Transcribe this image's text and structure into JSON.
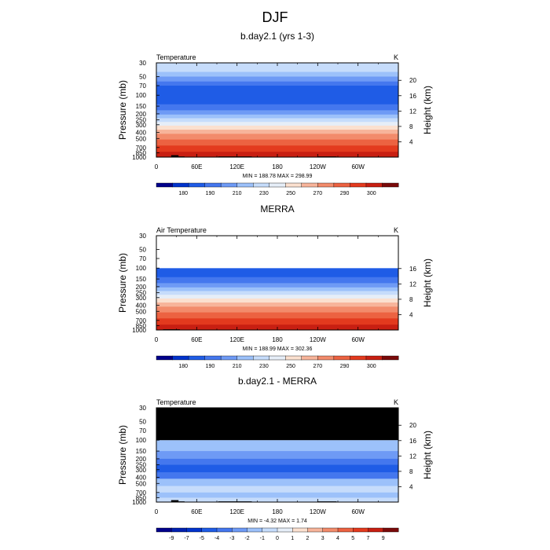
{
  "figure": {
    "title": "DJF",
    "axis_labels": {
      "pressure": "Pressure (mb)",
      "height": "Height (km)"
    }
  },
  "chart_data": [
    {
      "type": "heatmap",
      "title": "b.day2.1 (yrs 1-3)",
      "left_label": "Temperature",
      "unit": "K",
      "xlabel": "",
      "ylabel": "Pressure (mb)",
      "y2label": "Height (km)",
      "x_ticks": [
        "0",
        "60E",
        "120E",
        "180",
        "120W",
        "60W"
      ],
      "y_ticks": [
        "30",
        "50",
        "70",
        "100",
        "150",
        "200",
        "250",
        "300",
        "400",
        "500",
        "700",
        "850",
        "1000"
      ],
      "y2_ticks": [
        "4",
        "8",
        "12",
        "16",
        "20"
      ],
      "stats": "MIN = 188.78  MAX = 298.99",
      "min": 188.78,
      "max": 298.99,
      "colorbar_ticks": [
        "180",
        "190",
        "210",
        "230",
        "250",
        "270",
        "290",
        "300"
      ],
      "colorbar_colors": [
        "#00008b",
        "#0033cc",
        "#1f5ce6",
        "#4477ee",
        "#6e9af5",
        "#9cc1fa",
        "#c6dcfb",
        "#e6eef8",
        "#fbe0cf",
        "#f7b49a",
        "#f28b6b",
        "#ec6241",
        "#e33a1e",
        "#c81f12",
        "#7a0a0a"
      ],
      "bands": [
        {
          "p_top": 30,
          "p_bottom": 42,
          "color": "#c6dcfb"
        },
        {
          "p_top": 42,
          "p_bottom": 50,
          "color": "#9cc1fa"
        },
        {
          "p_top": 50,
          "p_bottom": 60,
          "color": "#6e9af5"
        },
        {
          "p_top": 60,
          "p_bottom": 70,
          "color": "#4477ee"
        },
        {
          "p_top": 70,
          "p_bottom": 140,
          "color": "#1f5ce6"
        },
        {
          "p_top": 140,
          "p_bottom": 175,
          "color": "#4477ee"
        },
        {
          "p_top": 175,
          "p_bottom": 205,
          "color": "#6e9af5"
        },
        {
          "p_top": 205,
          "p_bottom": 235,
          "color": "#9cc1fa"
        },
        {
          "p_top": 235,
          "p_bottom": 270,
          "color": "#c6dcfb"
        },
        {
          "p_top": 270,
          "p_bottom": 310,
          "color": "#e6eef8"
        },
        {
          "p_top": 310,
          "p_bottom": 360,
          "color": "#fbe0cf"
        },
        {
          "p_top": 360,
          "p_bottom": 420,
          "color": "#f7b49a"
        },
        {
          "p_top": 420,
          "p_bottom": 520,
          "color": "#f28b6b"
        },
        {
          "p_top": 520,
          "p_bottom": 650,
          "color": "#ec6241"
        },
        {
          "p_top": 650,
          "p_bottom": 820,
          "color": "#e33a1e"
        },
        {
          "p_top": 820,
          "p_bottom": 1000,
          "color": "#c81f12"
        }
      ],
      "masked_above_p": null,
      "terrain": [
        {
          "lon_start": 5,
          "lon_end": 22,
          "p_top": 985
        },
        {
          "lon_start": 22,
          "lon_end": 33,
          "p_top": 930
        },
        {
          "lon_start": 33,
          "lon_end": 42,
          "p_top": 975
        },
        {
          "lon_start": 92,
          "lon_end": 142,
          "p_top": 975
        },
        {
          "lon_start": 240,
          "lon_end": 268,
          "p_top": 975
        }
      ]
    },
    {
      "type": "heatmap",
      "title": "MERRA",
      "left_label": "Air Temperature",
      "unit": "K",
      "xlabel": "",
      "ylabel": "Pressure (mb)",
      "y2label": "Height (km)",
      "x_ticks": [
        "0",
        "60E",
        "120E",
        "180",
        "120W",
        "60W"
      ],
      "y_ticks": [
        "30",
        "50",
        "70",
        "100",
        "150",
        "200",
        "250",
        "300",
        "400",
        "500",
        "700",
        "850",
        "1000"
      ],
      "y2_ticks": [
        "4",
        "8",
        "12",
        "16"
      ],
      "stats": "MIN = 188.99  MAX = 302.36",
      "min": 188.99,
      "max": 302.36,
      "colorbar_ticks": [
        "180",
        "190",
        "210",
        "230",
        "250",
        "270",
        "290",
        "300"
      ],
      "colorbar_colors": [
        "#00008b",
        "#0033cc",
        "#1f5ce6",
        "#4477ee",
        "#6e9af5",
        "#9cc1fa",
        "#c6dcfb",
        "#e6eef8",
        "#fbe0cf",
        "#f7b49a",
        "#f28b6b",
        "#ec6241",
        "#e33a1e",
        "#c81f12",
        "#7a0a0a"
      ],
      "bands": [
        {
          "p_top": 100,
          "p_bottom": 140,
          "color": "#1f5ce6"
        },
        {
          "p_top": 140,
          "p_bottom": 175,
          "color": "#4477ee"
        },
        {
          "p_top": 175,
          "p_bottom": 205,
          "color": "#6e9af5"
        },
        {
          "p_top": 205,
          "p_bottom": 235,
          "color": "#9cc1fa"
        },
        {
          "p_top": 235,
          "p_bottom": 270,
          "color": "#c6dcfb"
        },
        {
          "p_top": 270,
          "p_bottom": 310,
          "color": "#e6eef8"
        },
        {
          "p_top": 310,
          "p_bottom": 360,
          "color": "#fbe0cf"
        },
        {
          "p_top": 360,
          "p_bottom": 420,
          "color": "#f7b49a"
        },
        {
          "p_top": 420,
          "p_bottom": 520,
          "color": "#f28b6b"
        },
        {
          "p_top": 520,
          "p_bottom": 650,
          "color": "#ec6241"
        },
        {
          "p_top": 650,
          "p_bottom": 820,
          "color": "#e33a1e"
        },
        {
          "p_top": 820,
          "p_bottom": 1000,
          "color": "#c81f12"
        }
      ],
      "masked_above_p": 100,
      "mask_color": "#ffffff",
      "terrain": [
        {
          "lon_start": 10,
          "lon_end": 35,
          "p_top": 975
        }
      ]
    },
    {
      "type": "heatmap",
      "title": "b.day2.1 - MERRA",
      "left_label": "Temperature",
      "unit": "K",
      "xlabel": "",
      "ylabel": "Pressure (mb)",
      "y2label": "Height (km)",
      "x_ticks": [
        "0",
        "60E",
        "120E",
        "180",
        "120W",
        "60W"
      ],
      "y_ticks": [
        "30",
        "50",
        "70",
        "100",
        "150",
        "200",
        "250",
        "300",
        "400",
        "500",
        "700",
        "850",
        "1000"
      ],
      "y2_ticks": [
        "4",
        "8",
        "12",
        "16",
        "20"
      ],
      "stats": "MIN =  -4.32  MAX =   1.74",
      "min": -4.32,
      "max": 1.74,
      "colorbar_ticks": [
        "-9",
        "-7",
        "-5",
        "-4",
        "-3",
        "-2",
        "-1",
        "0",
        "1",
        "2",
        "3",
        "4",
        "5",
        "7",
        "9"
      ],
      "colorbar_colors": [
        "#00008b",
        "#0020b0",
        "#0033cc",
        "#1f5ce6",
        "#4477ee",
        "#6e9af5",
        "#9cc1fa",
        "#c6dcfb",
        "#e6eef8",
        "#fbe0cf",
        "#f7b49a",
        "#f28b6b",
        "#ec6241",
        "#e33a1e",
        "#c81f12",
        "#7a0a0a"
      ],
      "bands": [
        {
          "p_top": 100,
          "p_bottom": 150,
          "color": "#9cc1fa"
        },
        {
          "p_top": 150,
          "p_bottom": 200,
          "color": "#6e9af5"
        },
        {
          "p_top": 200,
          "p_bottom": 250,
          "color": "#4477ee"
        },
        {
          "p_top": 250,
          "p_bottom": 330,
          "color": "#1f5ce6"
        },
        {
          "p_top": 330,
          "p_bottom": 420,
          "color": "#4477ee"
        },
        {
          "p_top": 420,
          "p_bottom": 550,
          "color": "#9cc1fa"
        },
        {
          "p_top": 550,
          "p_bottom": 700,
          "color": "#c6dcfb"
        },
        {
          "p_top": 700,
          "p_bottom": 850,
          "color": "#9cc1fa"
        },
        {
          "p_top": 850,
          "p_bottom": 1000,
          "color": "#c6dcfb"
        }
      ],
      "masked_above_p": 100,
      "mask_color": "#000000",
      "terrain": [
        {
          "lon_start": 5,
          "lon_end": 22,
          "p_top": 985
        },
        {
          "lon_start": 22,
          "lon_end": 33,
          "p_top": 930
        },
        {
          "lon_start": 33,
          "lon_end": 42,
          "p_top": 975
        },
        {
          "lon_start": 92,
          "lon_end": 142,
          "p_top": 975
        },
        {
          "lon_start": 240,
          "lon_end": 268,
          "p_top": 975
        }
      ]
    }
  ]
}
